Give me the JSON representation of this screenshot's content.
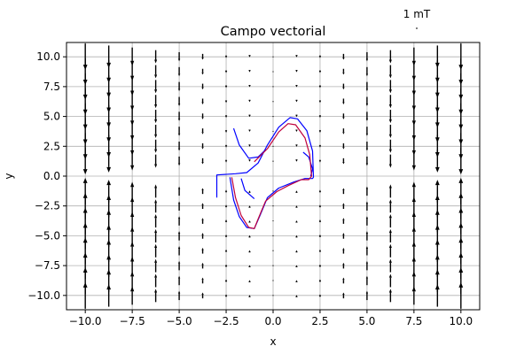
{
  "chart_data": {
    "type": "quiver",
    "title": "Campo vectorial",
    "xlabel": "x",
    "ylabel": "y",
    "xlim": [
      -11,
      11
    ],
    "ylim": [
      -11.2,
      11.2
    ],
    "grid": true,
    "x_ticks": [
      "−10.0",
      "−7.5",
      "−5.0",
      "−2.5",
      "0.0",
      "2.5",
      "5.0",
      "7.5",
      "10.0"
    ],
    "y_ticks": [
      "10.0",
      "7.5",
      "5.0",
      "2.5",
      "0.0",
      "−2.5",
      "−5.0",
      "−7.5",
      "−10.0"
    ],
    "quiver_key": "1 mT",
    "quiver": {
      "x": [
        -10,
        -8.75,
        -7.5,
        -6.25,
        -5,
        -3.75,
        -2.5,
        -1.25,
        0,
        1.25,
        2.5,
        3.75,
        5,
        6.25,
        7.5,
        8.75,
        10
      ],
      "y_top": [
        10,
        8.75,
        7.5,
        6.25,
        5,
        3.75,
        2.5,
        1.25
      ],
      "y_bottom": [
        -1.25,
        -2.5,
        -3.75,
        -5,
        -6.25,
        -7.5,
        -8.75,
        -10
      ],
      "magnitude": [
        1.0,
        0.85,
        0.7,
        0.5,
        0.35,
        0.22,
        0.1,
        0.04,
        0.02,
        0.04,
        0.1,
        0.22,
        0.35,
        0.5,
        0.7,
        0.85,
        1.0
      ],
      "top_direction": "down",
      "bottom_direction": "up"
    },
    "series": [
      {
        "color": "#0000ff",
        "segments": [
          [
            [
              -3.0,
              -1.8
            ],
            [
              -3.0,
              0.1
            ],
            [
              -2.0,
              0.2
            ],
            [
              -1.4,
              0.3
            ],
            [
              -0.8,
              1.1
            ],
            [
              -0.3,
              2.6
            ],
            [
              0.3,
              4.1
            ],
            [
              0.9,
              4.9
            ],
            [
              1.3,
              4.8
            ],
            [
              1.8,
              3.8
            ],
            [
              2.1,
              2.1
            ],
            [
              2.15,
              -0.1
            ],
            [
              2.1,
              -0.2
            ],
            [
              1.7,
              -0.2
            ],
            [
              1.1,
              -0.5
            ],
            [
              0.3,
              -1.0
            ],
            [
              -0.3,
              -1.8
            ],
            [
              -0.7,
              -3.3
            ],
            [
              -1.0,
              -4.4
            ],
            [
              -1.4,
              -4.3
            ],
            [
              -1.8,
              -3.4
            ],
            [
              -2.1,
              -2.0
            ],
            [
              -2.3,
              -0.1
            ]
          ],
          [
            [
              -2.1,
              4.0
            ],
            [
              -1.8,
              2.6
            ],
            [
              -1.3,
              1.5
            ],
            [
              -0.8,
              1.6
            ],
            [
              -0.4,
              2.2
            ]
          ],
          [
            [
              1.6,
              2.0
            ],
            [
              1.9,
              1.6
            ],
            [
              2.1,
              0.6
            ],
            [
              2.0,
              0.0
            ]
          ],
          [
            [
              -1.7,
              -0.2
            ],
            [
              -1.5,
              -1.2
            ],
            [
              -1.0,
              -1.9
            ]
          ]
        ]
      },
      {
        "color": "#c0003c",
        "segments": [
          [
            [
              -1.0,
              1.2
            ],
            [
              -0.3,
              2.3
            ],
            [
              0.3,
              3.7
            ],
            [
              0.8,
              4.4
            ],
            [
              1.2,
              4.3
            ],
            [
              1.7,
              3.2
            ],
            [
              1.95,
              1.8
            ],
            [
              2.05,
              0.0
            ],
            [
              1.9,
              -0.3
            ],
            [
              1.5,
              -0.3
            ],
            [
              0.8,
              -0.8
            ],
            [
              0.2,
              -1.3
            ],
            [
              -0.4,
              -2.1
            ],
            [
              -0.8,
              -3.6
            ],
            [
              -1.0,
              -4.4
            ],
            [
              -1.3,
              -4.3
            ],
            [
              -1.7,
              -3.3
            ],
            [
              -2.0,
              -1.8
            ],
            [
              -2.2,
              -0.1
            ]
          ]
        ]
      }
    ]
  }
}
